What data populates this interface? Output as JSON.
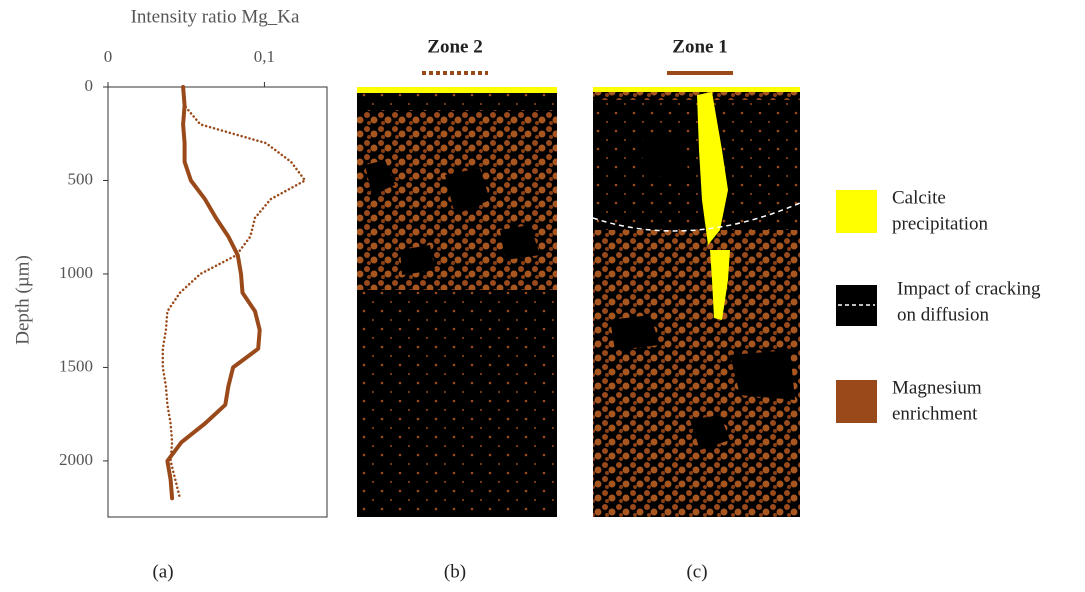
{
  "chart_data": {
    "type": "line",
    "x_label": "Intensity ratio Mg_Ka",
    "y_label": "Depth (µm)",
    "y": [
      0,
      100,
      200,
      300,
      400,
      500,
      600,
      700,
      800,
      900,
      1000,
      1100,
      1200,
      1300,
      1400,
      1500,
      1600,
      1700,
      1800,
      1900,
      2000,
      2100,
      2200
    ],
    "series": [
      {
        "name": "Zone 1",
        "color": "#9a4a1a",
        "style": "solid",
        "values": [
          0.048,
          0.049,
          0.048,
          0.049,
          0.049,
          0.053,
          0.062,
          0.069,
          0.077,
          0.083,
          0.085,
          0.086,
          0.094,
          0.097,
          0.096,
          0.08,
          0.077,
          0.075,
          0.062,
          0.047,
          0.038,
          0.04,
          0.041
        ]
      },
      {
        "name": "Zone 2",
        "color": "#9a4a1a",
        "style": "dotted",
        "values": [
          0.048,
          0.049,
          0.059,
          0.101,
          0.117,
          0.126,
          0.104,
          0.094,
          0.091,
          0.082,
          0.059,
          0.046,
          0.038,
          0.037,
          0.035,
          0.035,
          0.037,
          0.038,
          0.04,
          0.041,
          0.04,
          0.043,
          0.046
        ]
      }
    ],
    "xlim": [
      0,
      0.14
    ],
    "xticks": [
      0,
      {
        "value": 0.1,
        "label": "0,1"
      }
    ],
    "ylim": [
      0,
      2300
    ],
    "yticks": [
      0,
      500,
      1000,
      1500,
      2000
    ],
    "y_inverted": true
  },
  "legend": [
    {
      "lines": [
        "Calcite",
        "precipitation"
      ],
      "color": "#ffff00"
    },
    {
      "lines": [
        "Impact of cracking",
        "on diffusion"
      ],
      "color": "#000000"
    },
    {
      "lines": [
        "Magnesium",
        "enrichment"
      ],
      "color": "#9a4a1a"
    }
  ],
  "captions": [
    "(a)",
    "(b)",
    "(c)"
  ]
}
